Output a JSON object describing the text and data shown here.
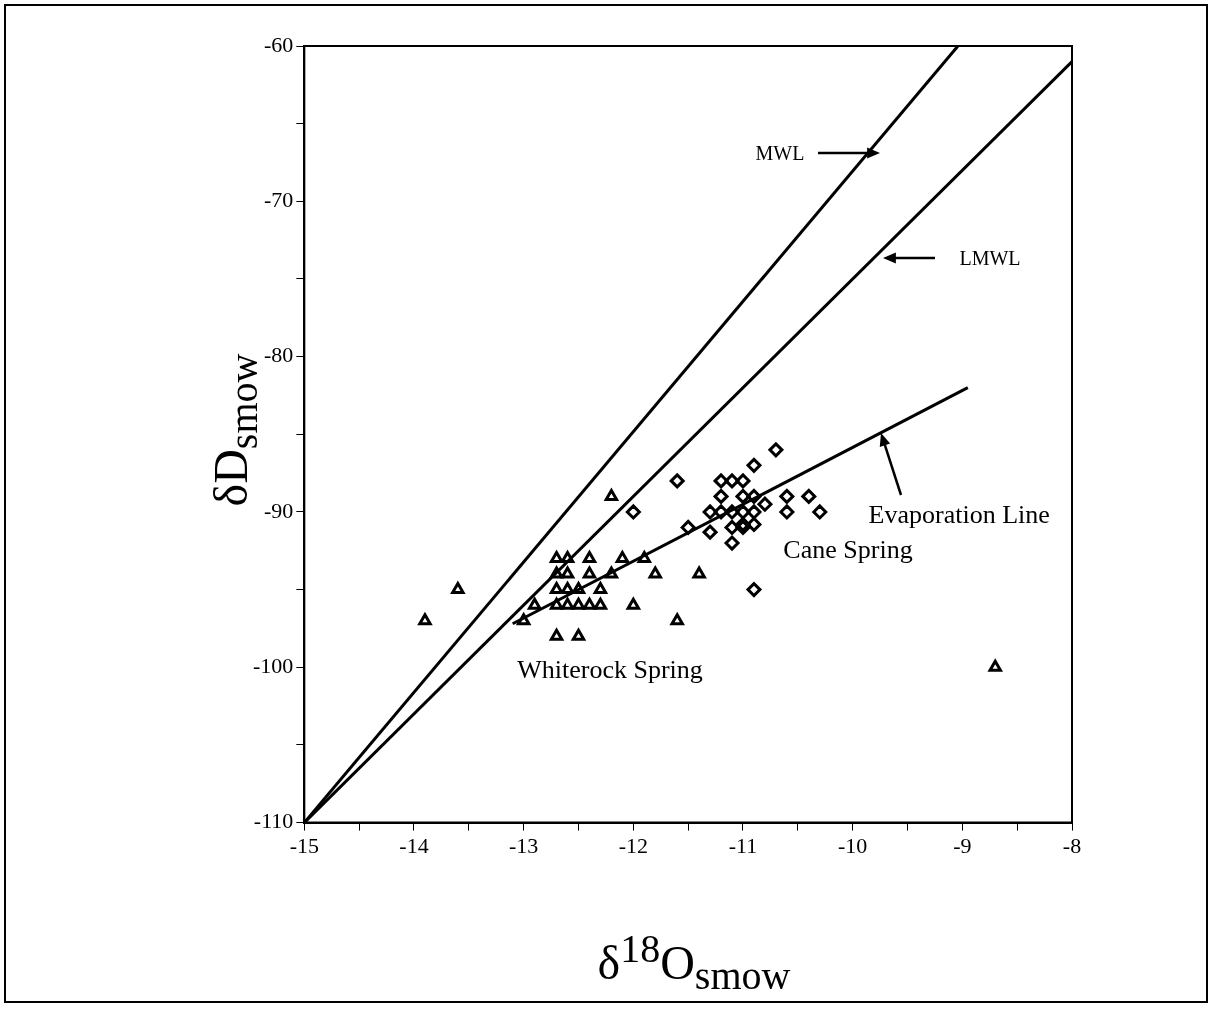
{
  "chart_data": {
    "type": "scatter",
    "xlabel": "δ$^{18}$O$_{smow}$",
    "ylabel": "δD$_{smow}$",
    "xlim": [
      -15,
      -8
    ],
    "ylim": [
      -110,
      -60
    ],
    "xticks": [
      -15,
      {
        "value": -14.5,
        "label": null
      },
      -14,
      {
        "value": -13.5,
        "label": null
      },
      -13,
      {
        "value": -12.5,
        "label": null
      },
      -12,
      {
        "value": -11.5,
        "label": null
      },
      -11,
      {
        "value": -10.5,
        "label": null
      },
      -10,
      {
        "value": -9.5,
        "label": null
      },
      -9,
      {
        "value": -8.5,
        "label": null
      },
      -8
    ],
    "yticks": [
      -110,
      {
        "value": -105,
        "label": null
      },
      -100,
      {
        "value": -95,
        "label": null
      },
      -90,
      {
        "value": -85,
        "label": null
      },
      -80,
      {
        "value": -75,
        "label": null
      },
      -70,
      {
        "value": -65,
        "label": null
      },
      -60
    ],
    "grid": false,
    "legend": false,
    "series": [
      {
        "type": "line",
        "color": "#000000",
        "marker": "none",
        "x": [
          -15,
          -9.04
        ],
        "values": [
          -110,
          -60
        ]
      },
      {
        "type": "line",
        "color": "#000000",
        "marker": "none",
        "x": [
          -15,
          -8
        ],
        "values": [
          -110,
          -61
        ]
      },
      {
        "type": "line",
        "color": "#000000",
        "marker": "none",
        "x": [
          -13.1,
          -8.95
        ],
        "values": [
          -97.2,
          -82
        ]
      },
      {
        "type": "scatter",
        "color": "#000000",
        "marker": "triangle",
        "x": [
          -13.9,
          -13.6,
          -13.0,
          -12.9,
          -12.7,
          -12.6,
          -12.7,
          -12.6,
          -12.7,
          -12.6,
          -12.5,
          -12.7,
          -12.6,
          -12.5,
          -12.4,
          -12.3,
          -12.7,
          -12.5,
          -12.4,
          -12.4,
          -12.3,
          -12.2,
          -12.1,
          -12.2,
          -12.0,
          -11.9,
          -11.8,
          -11.6,
          -11.4,
          -8.7
        ],
        "values": [
          -97,
          -95,
          -97,
          -96,
          -93,
          -93,
          -94,
          -94,
          -95,
          -95,
          -95,
          -96,
          -96,
          -96,
          -96,
          -96,
          -98,
          -98,
          -93,
          -94,
          -95,
          -94,
          -93,
          -89,
          -96,
          -93,
          -94,
          -97,
          -94,
          -100
        ]
      },
      {
        "type": "scatter",
        "color": "#000000",
        "marker": "diamond",
        "x": [
          -12.0,
          -11.6,
          -11.5,
          -11.3,
          -11.3,
          -11.2,
          -11.1,
          -11.0,
          -11.2,
          -11.1,
          -11.2,
          -11.0,
          -11.0,
          -10.9,
          -10.9,
          -10.7,
          -10.8,
          -10.9,
          -10.9,
          -11.0,
          -11.1,
          -11.1,
          -11.0,
          -10.6,
          -10.6,
          -10.4,
          -10.3,
          -10.9
        ],
        "values": [
          -90,
          -88,
          -91,
          -91.3,
          -90,
          -88,
          -88,
          -88,
          -89,
          -90,
          -90,
          -90,
          -89,
          -87,
          -89,
          -86,
          -89.5,
          -90,
          -90.8,
          -90.8,
          -91,
          -92,
          -91,
          -89,
          -90,
          -89,
          -90,
          -95
        ]
      }
    ],
    "annotations": [
      "MWL",
      "LMWL",
      {
        "text": "Evaporation Line",
        "x": -9.74,
        "y": -84.9
      },
      "Cane Spring",
      "Whiterock Spring"
    ]
  }
}
